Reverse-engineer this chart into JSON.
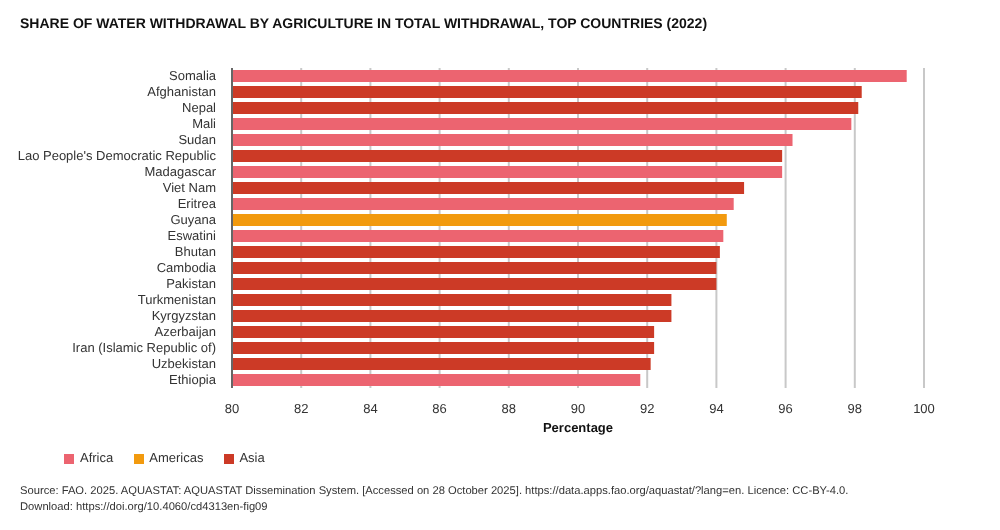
{
  "chart_data": {
    "type": "bar",
    "orientation": "horizontal",
    "stacked": true,
    "title": "SHARE OF WATER WITHDRAWAL BY AGRICULTURE IN TOTAL WITHDRAWAL, TOP COUNTRIES (2022)",
    "xlabel": "Percentage",
    "categories": [
      "Somalia",
      "Afghanistan",
      "Nepal",
      "Mali",
      "Sudan",
      "Lao People's Democratic Republic",
      "Madagascar",
      "Viet Nam",
      "Eritrea",
      "Guyana",
      "Eswatini",
      "Bhutan",
      "Cambodia",
      "Pakistan",
      "Turkmenistan",
      "Kyrgyzstan",
      "Azerbaijan",
      "Iran (Islamic Republic of)",
      "Uzbekistan",
      "Ethiopia"
    ],
    "series": [
      {
        "name": "Africa",
        "color": "#ec6470",
        "values": [
          99.5,
          null,
          null,
          97.9,
          96.2,
          null,
          95.9,
          null,
          94.5,
          null,
          94.2,
          null,
          null,
          null,
          null,
          null,
          null,
          null,
          null,
          91.8
        ]
      },
      {
        "name": "Americas",
        "color": "#f29a0e",
        "values": [
          null,
          null,
          null,
          null,
          null,
          null,
          null,
          null,
          null,
          94.3,
          null,
          null,
          null,
          null,
          null,
          null,
          null,
          null,
          null,
          null
        ]
      },
      {
        "name": "Asia",
        "color": "#cc3a26",
        "values": [
          null,
          98.2,
          98.1,
          null,
          null,
          95.9,
          null,
          94.8,
          null,
          null,
          null,
          94.1,
          94.0,
          94.0,
          92.7,
          92.7,
          92.2,
          92.2,
          92.1,
          null
        ]
      }
    ],
    "xlim": [
      80,
      100
    ],
    "xticks": [
      80,
      82,
      84,
      86,
      88,
      90,
      92,
      94,
      96,
      98,
      100
    ],
    "grid": "x",
    "legend": "bottom left",
    "annotations": [
      "Source: FAO. 2025. AQUASTAT: AQUASTAT Dissemination System. [Accessed on 28 October 2025]. https://data.apps.fao.org/aquastat/?lang=en. Licence: CC-BY-4.0.",
      "Download: https://doi.org/10.4060/cd4313en-fig09"
    ]
  }
}
